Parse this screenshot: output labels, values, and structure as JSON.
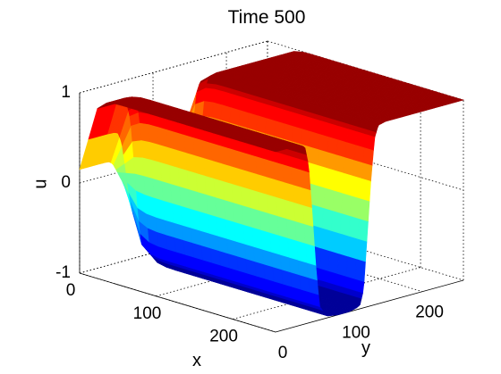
{
  "chart_data": {
    "type": "surface",
    "title": "Time 500",
    "xlabel": "x",
    "ylabel": "y",
    "zlabel": "u",
    "xlim": [
      0,
      256
    ],
    "ylim": [
      0,
      256
    ],
    "zlim": [
      -1,
      1
    ],
    "x_ticks": [
      0,
      100,
      200
    ],
    "y_ticks": [
      0,
      100,
      200
    ],
    "z_ticks": [
      -1,
      0,
      1
    ],
    "grid": "on",
    "colormap": "jet",
    "color_bands": 20,
    "profile_along_y": {
      "y": [
        0,
        15,
        25,
        35,
        40,
        45,
        50,
        55,
        60,
        70,
        85,
        100,
        110,
        115,
        120,
        125,
        130,
        135,
        140,
        150,
        256
      ],
      "u": [
        1.0,
        1.0,
        1.0,
        0.99,
        0.96,
        0.75,
        0.2,
        -0.4,
        -0.85,
        -0.98,
        -1.0,
        -1.0,
        -0.98,
        -0.96,
        -0.8,
        -0.2,
        0.4,
        0.85,
        0.98,
        1.0,
        1.0
      ]
    },
    "profile_along_x": {
      "x": [
        0,
        10,
        20,
        30,
        40,
        50,
        60,
        70,
        80,
        90,
        256
      ],
      "u": [
        0.15,
        0.45,
        0.85,
        0.96,
        0.99,
        1.0,
        1.0,
        1.0,
        1.0,
        1.0,
        1.0
      ]
    }
  }
}
